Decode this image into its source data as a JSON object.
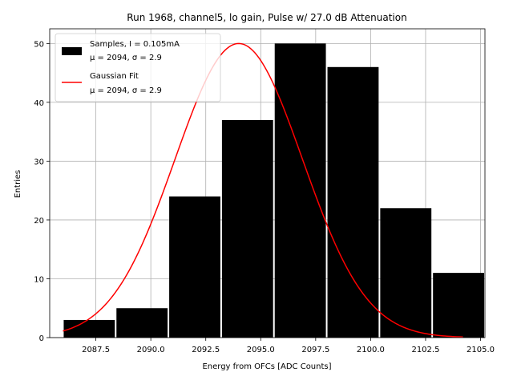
{
  "chart_data": {
    "type": "bar",
    "title": "Run 1968, channel5, lo gain, Pulse w/ 27.0 dB Attenuation",
    "xlabel": "Energy from OFCs [ADC Counts]",
    "ylabel": "Entries",
    "xlim": [
      2085.4,
      2105.2
    ],
    "ylim": [
      0,
      52.5
    ],
    "grid": true,
    "legend_placement": "top-left",
    "xticks": [
      2087.5,
      2090.0,
      2092.5,
      2095.0,
      2097.5,
      2100.0,
      2102.5,
      2105.0
    ],
    "xtick_labels": [
      "2087.5",
      "2090.0",
      "2092.5",
      "2095.0",
      "2097.5",
      "2100.0",
      "2102.5",
      "2105.0"
    ],
    "yticks": [
      0,
      10,
      20,
      30,
      40,
      50
    ],
    "ytick_labels": [
      "0",
      "10",
      "20",
      "30",
      "40",
      "50"
    ],
    "histogram": {
      "name_line1": "Samples, I = 0.105mA",
      "name_line2": "μ = 2094, σ = 2.9",
      "color": "#000000",
      "bins": [
        {
          "x0": 2086.0,
          "x1": 2088.4,
          "value": 3
        },
        {
          "x0": 2088.4,
          "x1": 2090.8,
          "value": 5
        },
        {
          "x0": 2090.8,
          "x1": 2093.2,
          "value": 24
        },
        {
          "x0": 2093.2,
          "x1": 2095.6,
          "value": 37
        },
        {
          "x0": 2095.6,
          "x1": 2098.0,
          "value": 50
        },
        {
          "x0": 2098.0,
          "x1": 2100.4,
          "value": 46
        },
        {
          "x0": 2100.4,
          "x1": 2102.8,
          "value": 22
        },
        {
          "x0": 2102.8,
          "x1": 2105.2,
          "value": 11
        }
      ]
    },
    "fit": {
      "name_line1": "Gaussian Fit",
      "name_line2": "μ = 2094, σ = 2.9",
      "color": "#ff0000",
      "mu": 2094.0,
      "sigma": 2.9,
      "amplitude": 50,
      "x_range": [
        2086.0,
        2104.2
      ]
    }
  }
}
